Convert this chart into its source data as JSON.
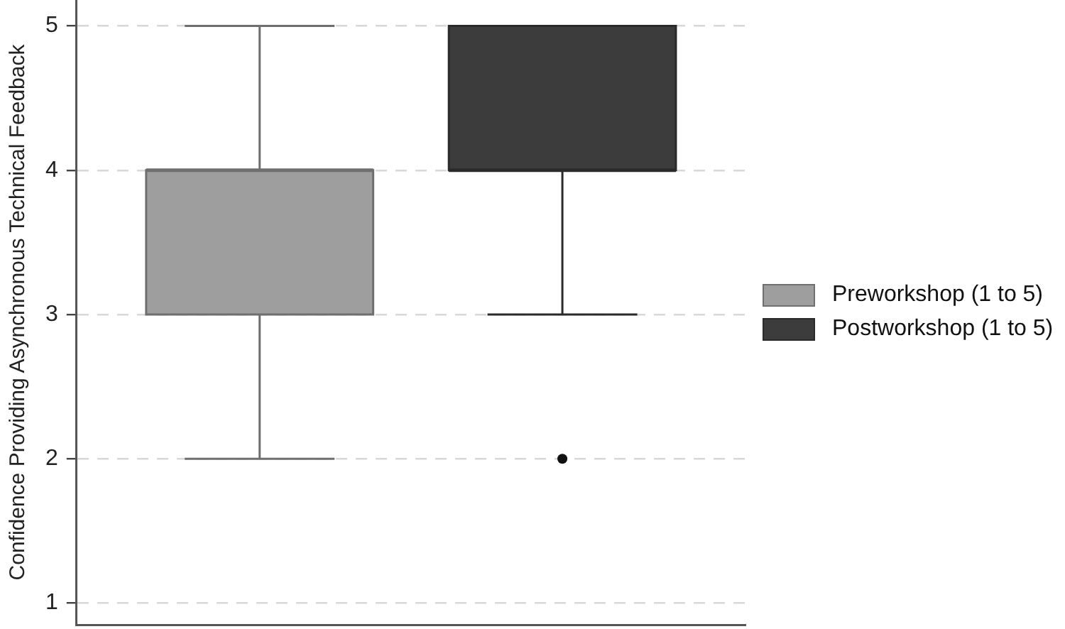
{
  "chart_data": {
    "type": "box",
    "ylabel": "Confidence Providing Asynchronous Technical Feedback",
    "categories": [
      null
    ],
    "series": [
      {
        "name": "Preworkshop (1 to 5)",
        "color": "#9e9e9e",
        "boxes": [
          {
            "low": 2,
            "q1": 3,
            "median": 4,
            "q3": 4,
            "high": 5
          }
        ]
      },
      {
        "name": "Postworkshop (1 to 5)",
        "color": "#3c3c3c",
        "boxes": [
          {
            "low": 3,
            "q1": 4,
            "median": 4,
            "q3": 5,
            "high": 5,
            "outliers": [
              2
            ]
          }
        ]
      }
    ],
    "ylim": [
      0.85,
      5.18
    ],
    "yticks": [
      1,
      2,
      3,
      4,
      5
    ],
    "grid": "y",
    "legend": "right",
    "tick_labels": "y"
  }
}
